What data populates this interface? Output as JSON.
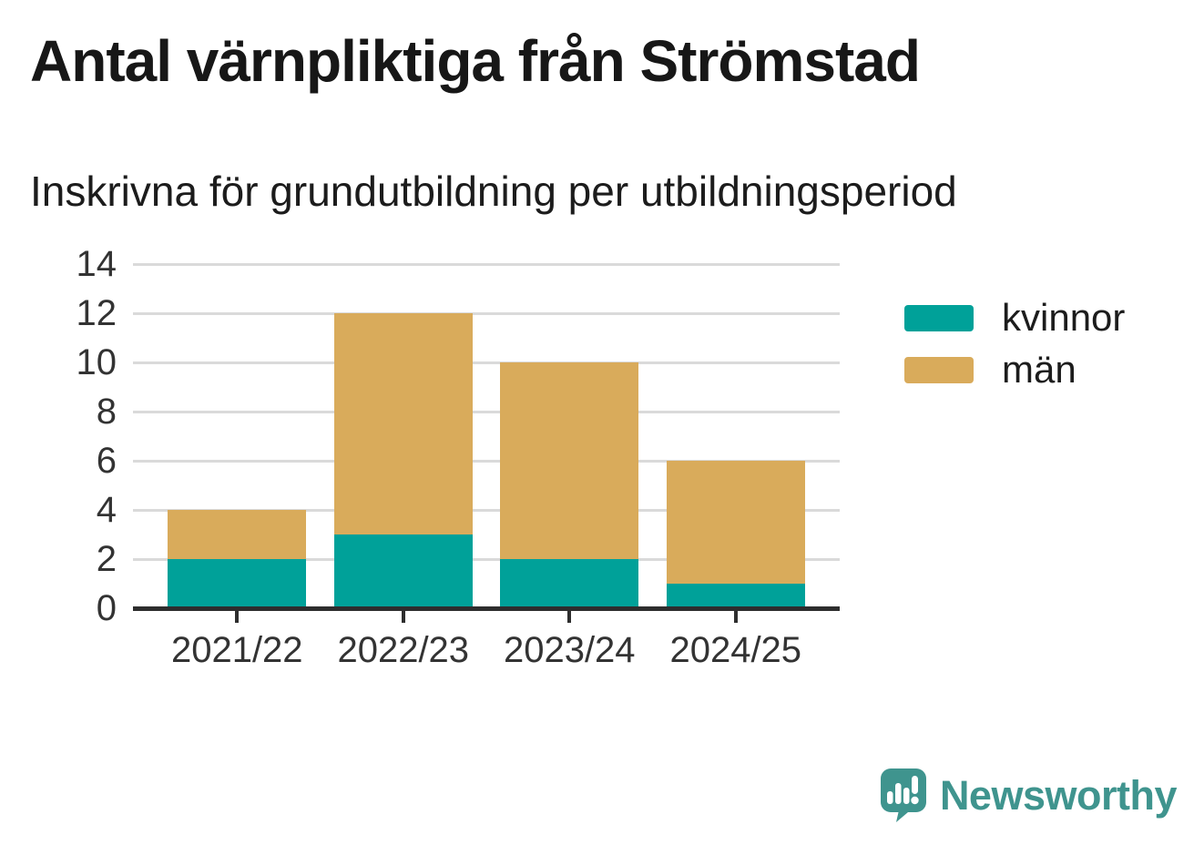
{
  "chart_data": {
    "type": "bar",
    "stacked": true,
    "title": "Antal värnpliktiga från Strömstad",
    "subtitle": "Inskrivna för grundutbildning per utbildningsperiod",
    "categories": [
      "2021/22",
      "2022/23",
      "2023/24",
      "2024/25"
    ],
    "series": [
      {
        "name": "kvinnor",
        "color": "#00a199",
        "values": [
          2,
          3,
          2,
          1
        ]
      },
      {
        "name": "män",
        "color": "#d9ab5b",
        "values": [
          2,
          9,
          8,
          5
        ]
      }
    ],
    "stack_totals": [
      4,
      12,
      10,
      6
    ],
    "ylim": [
      0,
      14
    ],
    "y_ticks": [
      0,
      2,
      4,
      6,
      8,
      10,
      12,
      14
    ],
    "xlabel": "",
    "ylabel": "",
    "grid": "horizontal",
    "legend_position": "right",
    "grid_color": "#dadada",
    "axis_color": "#2e2e2e",
    "tick_label_color": "#333333"
  },
  "branding": {
    "logo_text": "Newsworthy",
    "logo_color": "#3f948e"
  }
}
